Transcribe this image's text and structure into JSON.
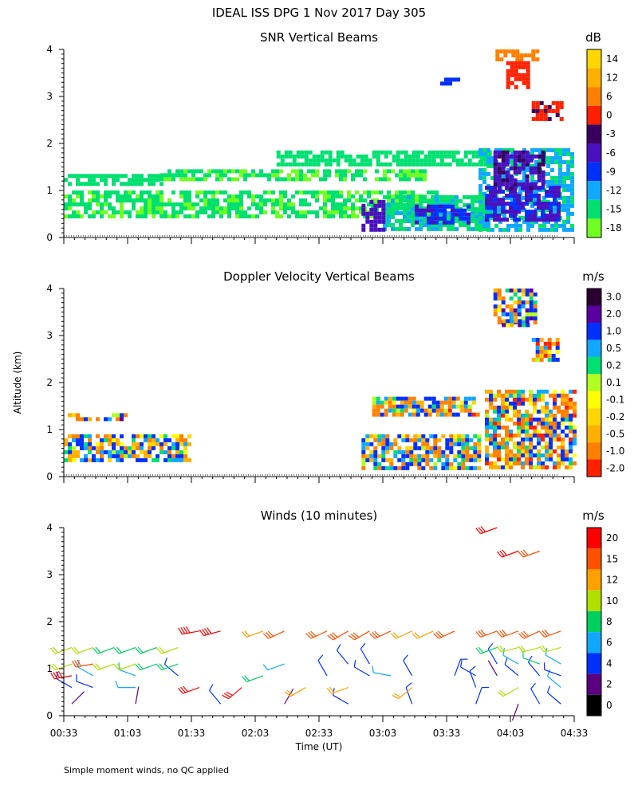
{
  "figure": {
    "title": "IDEAL ISS DPG    1 Nov 2017 Day 305",
    "ylabel": "Altitude (km)",
    "xlabel": "Time (UT)",
    "footnote": "Simple moment winds, no QC applied"
  },
  "x_ticks": [
    "00:33",
    "01:03",
    "01:33",
    "02:03",
    "02:33",
    "03:03",
    "03:33",
    "04:03",
    "04:33"
  ],
  "y_ticks": [
    "0",
    "1",
    "2",
    "3",
    "4"
  ],
  "chart_data": [
    {
      "type": "heatmap",
      "title": "SNR Vertical Beams",
      "unit": "dB",
      "x_range": [
        "00:33",
        "04:33"
      ],
      "ylim": [
        0,
        4
      ],
      "colorbar_labels": [
        "14",
        "12",
        "6",
        "0",
        "-3",
        "-6",
        "-9",
        "-12",
        "-15",
        "-18"
      ],
      "colors": [
        "#ffd700",
        "#ffb000",
        "#ff8000",
        "#ff2000",
        "#3a0060",
        "#4a10c0",
        "#0030ff",
        "#10a8ff",
        "#00e070",
        "#70ff20"
      ],
      "regions": [
        {
          "x0": 0,
          "x1": 46,
          "y0": 1.15,
          "y1": 1.35,
          "level": -15
        },
        {
          "x0": 0,
          "x1": 175,
          "y0": 0.45,
          "y1": 1.0,
          "level": -16
        },
        {
          "x0": 45,
          "x1": 170,
          "y0": 1.2,
          "y1": 1.45,
          "level": -16
        },
        {
          "x0": 100,
          "x1": 200,
          "y0": 1.55,
          "y1": 1.85,
          "level": -15
        },
        {
          "x0": 150,
          "x1": 200,
          "y0": 0.2,
          "y1": 0.9,
          "level": -14
        },
        {
          "x0": 165,
          "x1": 190,
          "y0": 0.3,
          "y1": 0.7,
          "level": -8
        },
        {
          "x0": 195,
          "x1": 240,
          "y0": 0.2,
          "y1": 1.9,
          "level": -13
        },
        {
          "x0": 198,
          "x1": 232,
          "y0": 0.35,
          "y1": 1.1,
          "level": -7
        },
        {
          "x0": 202,
          "x1": 225,
          "y0": 1.05,
          "y1": 1.85,
          "level": -5
        },
        {
          "x0": 203,
          "x1": 222,
          "y0": 3.75,
          "y1": 4.0,
          "level": 6
        },
        {
          "x0": 208,
          "x1": 218,
          "y0": 3.2,
          "y1": 3.75,
          "level": 0
        },
        {
          "x0": 220,
          "x1": 235,
          "y0": 2.5,
          "y1": 2.9,
          "level": -1
        },
        {
          "x0": 140,
          "x1": 150,
          "y0": 0.2,
          "y1": 0.8,
          "level": -6
        },
        {
          "x0": 177,
          "x1": 185,
          "y0": 3.25,
          "y1": 3.4,
          "level": -9
        }
      ]
    },
    {
      "type": "heatmap",
      "title": "Doppler Velocity Vertical Beams",
      "unit": "m/s",
      "x_range": [
        "00:33",
        "04:33"
      ],
      "ylim": [
        0,
        4
      ],
      "colorbar_labels": [
        "3.0",
        "2.0",
        "1.0",
        "0.5",
        "0.2",
        "0.1",
        "-0.1",
        "-0.2",
        "-0.5",
        "-1.0",
        "-2.0"
      ],
      "colors": [
        "#2a0030",
        "#5a00a0",
        "#0030ff",
        "#10a8ff",
        "#00e070",
        "#b0ff20",
        "#ffff00",
        "#ffd700",
        "#ffb000",
        "#ff8000",
        "#ff2000"
      ],
      "regions": [
        {
          "x0": 0,
          "x1": 30,
          "y0": 1.2,
          "y1": 1.35,
          "level": 0.2
        },
        {
          "x0": 0,
          "x1": 60,
          "y0": 0.35,
          "y1": 0.9,
          "level": 0.0
        },
        {
          "x0": 140,
          "x1": 195,
          "y0": 0.2,
          "y1": 0.9,
          "level": 0.0
        },
        {
          "x0": 145,
          "x1": 195,
          "y0": 1.3,
          "y1": 1.7,
          "level": -0.1
        },
        {
          "x0": 198,
          "x1": 240,
          "y0": 0.2,
          "y1": 1.85,
          "level": -0.2
        },
        {
          "x0": 202,
          "x1": 222,
          "y0": 3.3,
          "y1": 4.0,
          "level": 0.2
        },
        {
          "x0": 206,
          "x1": 218,
          "y0": 3.2,
          "y1": 3.35,
          "level": 1.0
        },
        {
          "x0": 220,
          "x1": 232,
          "y0": 2.5,
          "y1": 2.95,
          "level": -0.5
        }
      ]
    },
    {
      "type": "wind-barbs",
      "title": "Winds (10 minutes)",
      "unit": "m/s",
      "x_range": [
        "00:33",
        "04:33"
      ],
      "ylim": [
        0,
        4
      ],
      "colorbar_labels": [
        "20",
        "15",
        "12",
        "10",
        "8",
        "6",
        "4",
        "2",
        "0"
      ],
      "colors": [
        "#ff0000",
        "#ff5000",
        "#ffa000",
        "#b0e000",
        "#00d060",
        "#10a8ff",
        "#0030ff",
        "#5a0080",
        "#000000"
      ],
      "samples_minutes_after_start": [
        0,
        10,
        20,
        30,
        40,
        50,
        60,
        70,
        80,
        90,
        100,
        110,
        120,
        130,
        140,
        150,
        160,
        170,
        180,
        190,
        200,
        210,
        220,
        230
      ],
      "profiles": [
        {
          "alt": 0.25,
          "speed": [
            1,
            null,
            null,
            1,
            null,
            null,
            null,
            3,
            null,
            null,
            2,
            null,
            null,
            3,
            null,
            null,
            4,
            null,
            null,
            3,
            null,
            2,
            4,
            3
          ],
          "dir": [
            45,
            0,
            0,
            10,
            0,
            0,
            0,
            320,
            0,
            0,
            30,
            0,
            0,
            300,
            0,
            0,
            340,
            0,
            0,
            20,
            0,
            200,
            330,
            310
          ]
        },
        {
          "alt": 0.6,
          "speed": [
            3,
            4,
            null,
            5,
            null,
            null,
            16,
            null,
            16,
            null,
            null,
            12,
            null,
            11,
            null,
            null,
            12,
            null,
            null,
            3,
            null,
            9,
            null,
            5
          ],
          "dir": [
            300,
            290,
            0,
            270,
            0,
            0,
            250,
            0,
            230,
            0,
            0,
            240,
            0,
            250,
            0,
            0,
            230,
            0,
            0,
            340,
            0,
            240,
            0,
            310
          ]
        },
        {
          "alt": 0.85,
          "speed": [
            18,
            5,
            null,
            6,
            null,
            3,
            null,
            null,
            null,
            8,
            null,
            null,
            3,
            null,
            4,
            6,
            3,
            null,
            4,
            3,
            2,
            3,
            3,
            4
          ],
          "dir": [
            260,
            300,
            0,
            290,
            0,
            310,
            0,
            0,
            0,
            250,
            0,
            0,
            330,
            0,
            300,
            280,
            330,
            0,
            20,
            300,
            330,
            310,
            320,
            290
          ]
        },
        {
          "alt": 1.1,
          "speed": [
            10,
            14,
            9,
            9,
            8,
            8,
            null,
            null,
            null,
            null,
            6,
            null,
            null,
            3,
            4,
            null,
            null,
            null,
            null,
            null,
            3,
            6,
            7,
            6
          ],
          "dir": [
            250,
            260,
            250,
            250,
            250,
            250,
            0,
            0,
            0,
            0,
            250,
            0,
            0,
            320,
            330,
            0,
            0,
            0,
            0,
            0,
            330,
            300,
            290,
            300
          ]
        },
        {
          "alt": 1.45,
          "speed": [
            9,
            9,
            8,
            8,
            8,
            9,
            null,
            null,
            null,
            null,
            null,
            null,
            null,
            null,
            null,
            null,
            null,
            null,
            null,
            null,
            8,
            9,
            9,
            9
          ],
          "dir": [
            250,
            250,
            250,
            250,
            250,
            250,
            0,
            0,
            0,
            0,
            0,
            0,
            0,
            0,
            0,
            0,
            0,
            0,
            0,
            0,
            250,
            255,
            255,
            255
          ]
        },
        {
          "alt": 1.8,
          "speed": [
            null,
            null,
            null,
            null,
            null,
            null,
            18,
            19,
            null,
            12,
            13,
            null,
            13,
            14,
            14,
            13,
            12,
            12,
            13,
            null,
            14,
            15,
            15,
            14
          ],
          "dir": [
            0,
            0,
            0,
            0,
            0,
            0,
            260,
            255,
            0,
            250,
            245,
            0,
            245,
            240,
            240,
            245,
            245,
            245,
            245,
            0,
            250,
            250,
            245,
            250
          ]
        },
        {
          "alt": 3.5,
          "speed": [
            null,
            null,
            null,
            null,
            null,
            null,
            null,
            null,
            null,
            null,
            null,
            null,
            null,
            null,
            null,
            null,
            null,
            null,
            null,
            null,
            null,
            16,
            14,
            null
          ],
          "dir": [
            0,
            0,
            0,
            0,
            0,
            0,
            0,
            0,
            0,
            0,
            0,
            0,
            0,
            0,
            0,
            0,
            0,
            0,
            0,
            0,
            0,
            250,
            250,
            0
          ]
        },
        {
          "alt": 4.0,
          "speed": [
            null,
            null,
            null,
            null,
            null,
            null,
            null,
            null,
            null,
            null,
            null,
            null,
            null,
            null,
            null,
            null,
            null,
            null,
            null,
            null,
            17,
            null,
            null,
            null
          ],
          "dir": [
            0,
            0,
            0,
            0,
            0,
            0,
            0,
            0,
            0,
            0,
            0,
            0,
            0,
            0,
            0,
            0,
            0,
            0,
            0,
            0,
            250,
            0,
            0,
            0
          ]
        }
      ]
    }
  ]
}
